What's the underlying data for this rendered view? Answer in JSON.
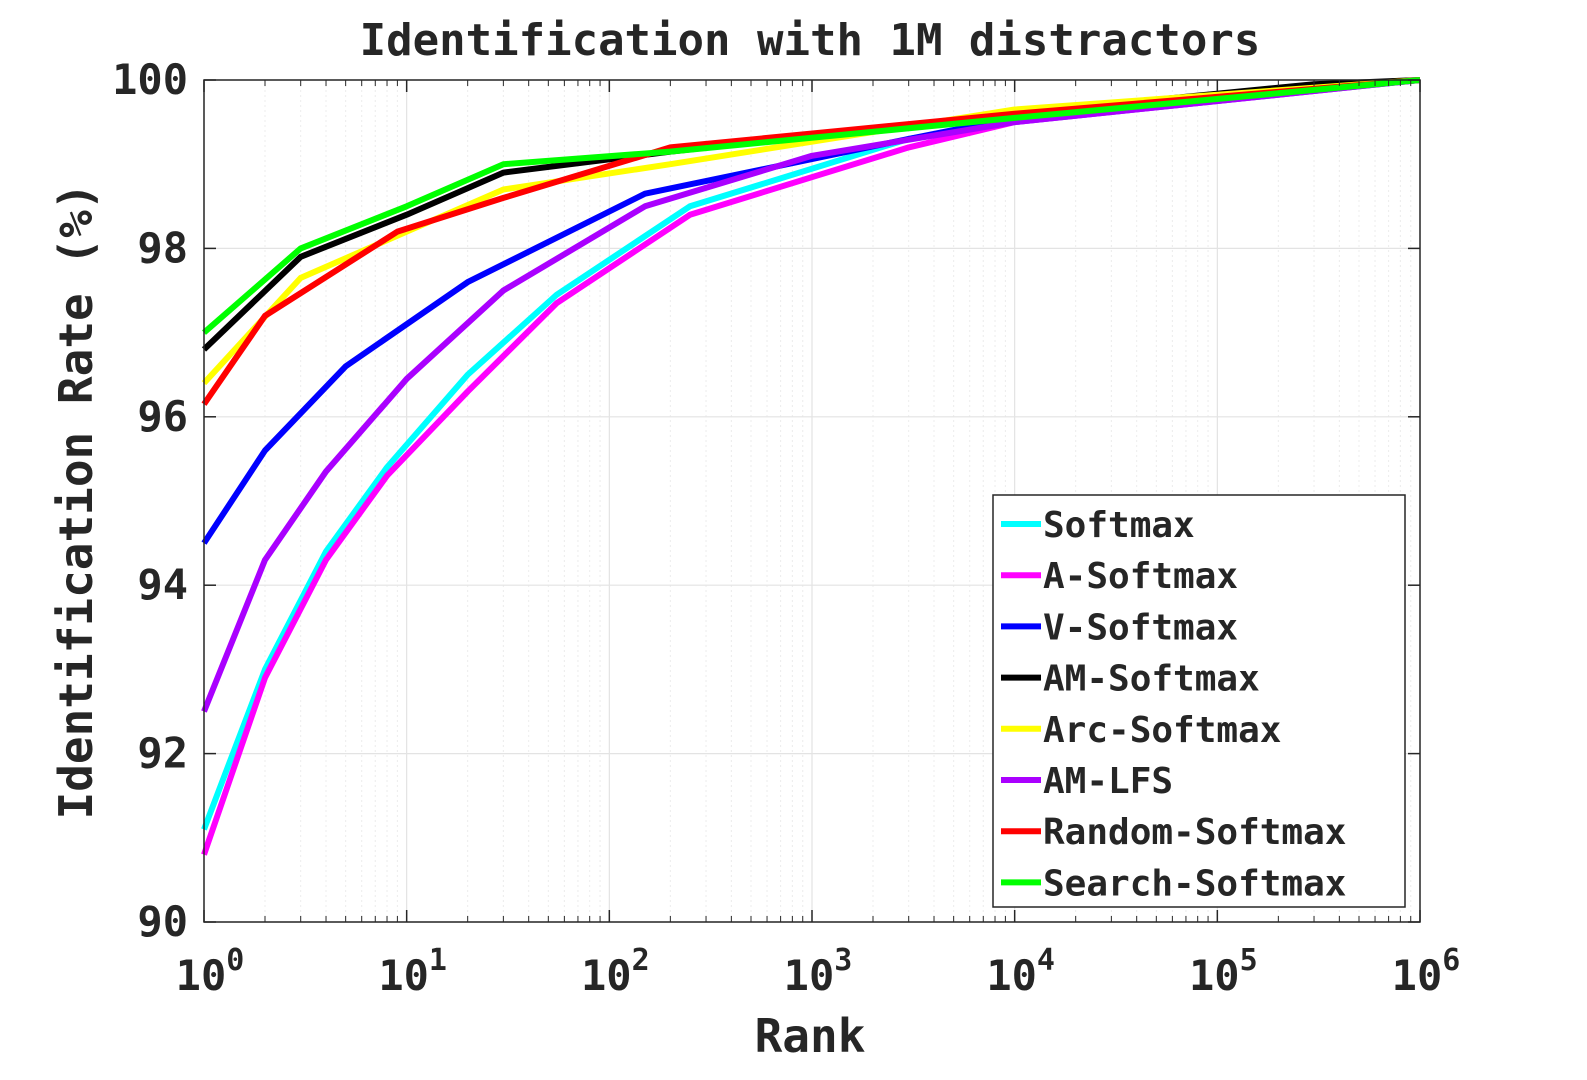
{
  "chart_data": {
    "type": "line",
    "title": "Identification with 1M distractors",
    "xlabel": "Rank",
    "ylabel": "Identification Rate (%)",
    "xscale": "log",
    "xlim": [
      1,
      1000000
    ],
    "ylim": [
      90,
      100
    ],
    "yticks": [
      "90",
      "92",
      "94",
      "96",
      "98",
      "100"
    ],
    "xticks": [
      {
        "base": "10",
        "exp": "0"
      },
      {
        "base": "10",
        "exp": "1"
      },
      {
        "base": "10",
        "exp": "2"
      },
      {
        "base": "10",
        "exp": "3"
      },
      {
        "base": "10",
        "exp": "4"
      },
      {
        "base": "10",
        "exp": "5"
      },
      {
        "base": "10",
        "exp": "6"
      }
    ],
    "grid": true,
    "legend_position": "lower-right",
    "series": [
      {
        "name": "Softmax",
        "color": "#00ffff",
        "points": [
          [
            1,
            91.1
          ],
          [
            2,
            93.0
          ],
          [
            4,
            94.4
          ],
          [
            8,
            95.4
          ],
          [
            20,
            96.5
          ],
          [
            55,
            97.45
          ],
          [
            250,
            98.5
          ],
          [
            3000,
            99.3
          ],
          [
            10000,
            99.5
          ],
          [
            1000000,
            100
          ]
        ]
      },
      {
        "name": "A-Softmax",
        "color": "#ff00ff",
        "points": [
          [
            1,
            90.8
          ],
          [
            2,
            92.9
          ],
          [
            4,
            94.3
          ],
          [
            8,
            95.3
          ],
          [
            20,
            96.3
          ],
          [
            55,
            97.35
          ],
          [
            250,
            98.4
          ],
          [
            3000,
            99.2
          ],
          [
            10000,
            99.5
          ],
          [
            1000000,
            100
          ]
        ]
      },
      {
        "name": "V-Softmax",
        "color": "#0000ff",
        "points": [
          [
            1,
            94.5
          ],
          [
            2,
            95.6
          ],
          [
            5,
            96.6
          ],
          [
            20,
            97.6
          ],
          [
            150,
            98.65
          ],
          [
            3000,
            99.3
          ],
          [
            10000,
            99.55
          ],
          [
            1000000,
            100
          ]
        ]
      },
      {
        "name": "AM-Softmax",
        "color": "#000000",
        "points": [
          [
            1,
            96.8
          ],
          [
            3,
            97.9
          ],
          [
            10,
            98.4
          ],
          [
            30,
            98.9
          ],
          [
            200,
            99.15
          ],
          [
            10000,
            99.6
          ],
          [
            300000,
            99.95
          ],
          [
            1000000,
            100
          ]
        ]
      },
      {
        "name": "Arc-Softmax",
        "color": "#ffff00",
        "points": [
          [
            1,
            96.4
          ],
          [
            3,
            97.65
          ],
          [
            10,
            98.2
          ],
          [
            30,
            98.7
          ],
          [
            200,
            99.0
          ],
          [
            10000,
            99.65
          ],
          [
            1000000,
            100
          ]
        ]
      },
      {
        "name": "AM-LFS",
        "color": "#aa00ff",
        "points": [
          [
            1,
            92.5
          ],
          [
            2,
            94.3
          ],
          [
            4,
            95.35
          ],
          [
            10,
            96.45
          ],
          [
            30,
            97.5
          ],
          [
            150,
            98.5
          ],
          [
            1000,
            99.1
          ],
          [
            10000,
            99.5
          ],
          [
            1000000,
            100
          ]
        ]
      },
      {
        "name": "Random-Softmax",
        "color": "#ff0000",
        "points": [
          [
            1,
            96.15
          ],
          [
            2,
            97.2
          ],
          [
            9,
            98.2
          ],
          [
            30,
            98.6
          ],
          [
            200,
            99.2
          ],
          [
            10000,
            99.6
          ],
          [
            1000000,
            100
          ]
        ]
      },
      {
        "name": "Search-Softmax",
        "color": "#00ff00",
        "points": [
          [
            1,
            97.0
          ],
          [
            3,
            98.0
          ],
          [
            10,
            98.5
          ],
          [
            30,
            99.0
          ],
          [
            200,
            99.15
          ],
          [
            10000,
            99.55
          ],
          [
            1000000,
            100
          ]
        ]
      }
    ]
  }
}
